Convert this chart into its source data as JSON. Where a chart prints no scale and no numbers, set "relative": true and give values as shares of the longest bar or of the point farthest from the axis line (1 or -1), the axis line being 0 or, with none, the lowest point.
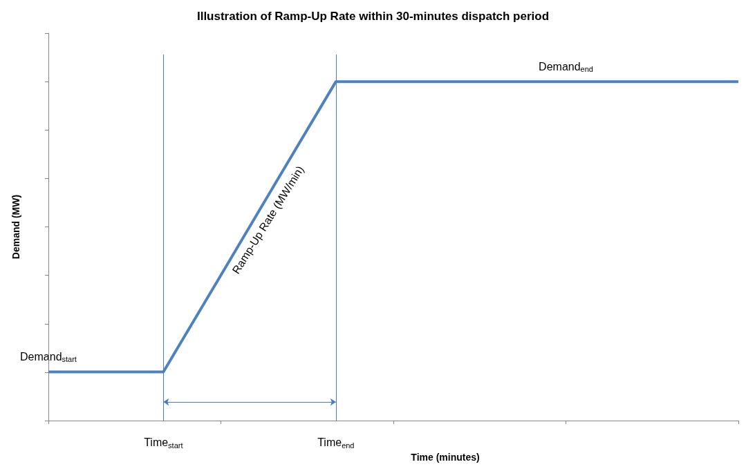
{
  "chart_data": {
    "type": "line",
    "title": "Illustration of Ramp-Up Rate within 30-minutes dispatch period",
    "xlabel": "Time (minutes)",
    "ylabel": "Demand (MW)",
    "relative": true,
    "categories": [
      null,
      null,
      "Time$_{start}$",
      null,
      null,
      "Time$_{end}$",
      null,
      null,
      null,
      null,
      null,
      null,
      null
    ],
    "series": [
      {
        "color": "#4f81bd",
        "values": [
          0.144,
          0.144,
          0.144,
          0.429,
          0.715,
          1,
          1,
          1,
          1,
          1,
          1,
          1,
          1
        ]
      }
    ],
    "ref_lines": [
      {
        "axis": "x",
        "value": "Time$_{start}$",
        "color": "#4a7ebb"
      },
      {
        "axis": "x",
        "value": "Time$_{end}$",
        "color": "#4a7ebb"
      }
    ],
    "annotations": [
      "Demand$_{start}$",
      "Ramp-Up Rate (MW/min)",
      "Demand$_{end}$"
    ],
    "grid": false,
    "marker": "none",
    "line_style": "solid"
  }
}
